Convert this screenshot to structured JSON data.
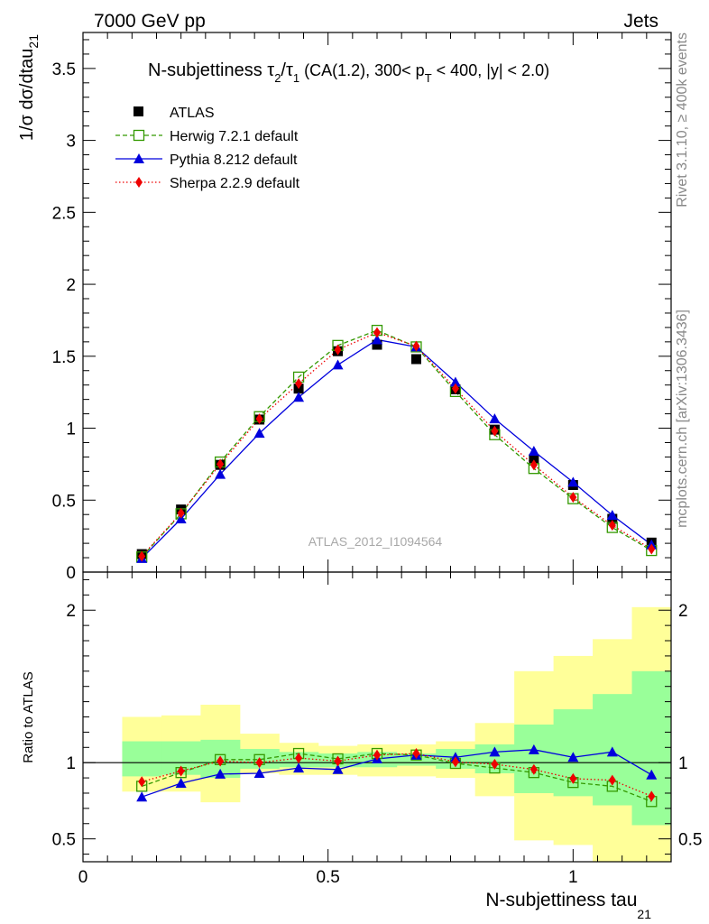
{
  "header": {
    "left": "7000 GeV pp",
    "right": "Jets"
  },
  "side_labels": {
    "rivet": "Rivet 3.1.10, ≥ 400k events",
    "mcplots": "mcplots.cern.ch [arXiv:1306.3436]"
  },
  "watermark": "ATLAS_2012_I1094564",
  "colors": {
    "atlas": "#000000",
    "herwig": "#339900",
    "pythia": "#0000dd",
    "sherpa": "#ee0000",
    "band_inner": "#99ff99",
    "band_outer": "#ffff99"
  },
  "chart_data": [
    {
      "type": "line",
      "title_main": "N-subjettiness τ",
      "title_sub1": "2",
      "title_slash": "/τ",
      "title_sub2": "1",
      "title_rest1": " (CA(1.2), 300< p",
      "title_sub3": "T",
      "title_rest2": " < 400, |y| < 2.0)",
      "ylabel_main": "1/σ dσ/dtau",
      "ylabel_sub": "21",
      "xlim": [
        0,
        1.2
      ],
      "ylim": [
        0,
        3.75
      ],
      "yticks": [
        0,
        0.5,
        1,
        1.5,
        2,
        2.5,
        3,
        3.5
      ],
      "ytick_labels": [
        "0",
        "0.5",
        "1",
        "1.5",
        "2",
        "2.5",
        "3",
        "3.5"
      ],
      "x": [
        0.12,
        0.2,
        0.28,
        0.36,
        0.44,
        0.52,
        0.6,
        0.68,
        0.76,
        0.84,
        0.92,
        1.0,
        1.08,
        1.16
      ],
      "series": [
        {
          "name": "ATLAS",
          "key": "atlas",
          "values": [
            0.125,
            0.435,
            0.745,
            1.06,
            1.275,
            1.535,
            1.58,
            1.48,
            1.27,
            0.99,
            0.785,
            0.605,
            0.37,
            0.205
          ]
        },
        {
          "name": "Herwig 7.2.1 default",
          "key": "herwig",
          "values": [
            0.105,
            0.405,
            0.765,
            1.08,
            1.355,
            1.575,
            1.68,
            1.565,
            1.255,
            0.955,
            0.72,
            0.51,
            0.31,
            0.15
          ]
        },
        {
          "name": "Pythia 8.212 default",
          "key": "pythia",
          "values": [
            0.095,
            0.37,
            0.68,
            0.965,
            1.215,
            1.44,
            1.615,
            1.565,
            1.32,
            1.065,
            0.84,
            0.625,
            0.395,
            0.19
          ]
        },
        {
          "name": "Sherpa 2.2.9 default",
          "key": "sherpa",
          "values": [
            0.11,
            0.41,
            0.75,
            1.065,
            1.31,
            1.545,
            1.665,
            1.57,
            1.275,
            0.98,
            0.745,
            0.52,
            0.325,
            0.16
          ]
        }
      ]
    },
    {
      "type": "line",
      "ylabel": "Ratio to ATLAS",
      "xlabel_main": "N-subjettiness tau",
      "xlabel_sub": "21",
      "xlim": [
        0,
        1.2
      ],
      "ylim": [
        0.35,
        2.25
      ],
      "yticks": [
        0.5,
        1,
        2
      ],
      "ytick_labels": [
        "0.5",
        "1",
        "2"
      ],
      "xticks": [
        0,
        0.5,
        1
      ],
      "xtick_labels": [
        "0",
        "0.5",
        "1"
      ],
      "x": [
        0.12,
        0.2,
        0.28,
        0.36,
        0.44,
        0.52,
        0.6,
        0.68,
        0.76,
        0.84,
        0.92,
        1.0,
        1.08,
        1.16
      ],
      "bins": [
        [
          0.08,
          0.16
        ],
        [
          0.16,
          0.24
        ],
        [
          0.24,
          0.32
        ],
        [
          0.32,
          0.4
        ],
        [
          0.4,
          0.48
        ],
        [
          0.48,
          0.56
        ],
        [
          0.56,
          0.64
        ],
        [
          0.64,
          0.72
        ],
        [
          0.72,
          0.8
        ],
        [
          0.8,
          0.88
        ],
        [
          0.88,
          0.96
        ],
        [
          0.96,
          1.04
        ],
        [
          1.04,
          1.12
        ],
        [
          1.12,
          1.2
        ]
      ],
      "band_inner": [
        [
          0.91,
          1.14
        ],
        [
          0.92,
          1.14
        ],
        [
          0.9,
          1.15
        ],
        [
          0.96,
          1.09
        ],
        [
          0.97,
          1.07
        ],
        [
          0.97,
          1.06
        ],
        [
          0.97,
          1.07
        ],
        [
          0.98,
          1.06
        ],
        [
          0.96,
          1.09
        ],
        [
          0.93,
          1.12
        ],
        [
          0.8,
          1.25
        ],
        [
          0.78,
          1.35
        ],
        [
          0.72,
          1.45
        ],
        [
          0.59,
          1.6
        ]
      ],
      "band_outer": [
        [
          0.81,
          1.3
        ],
        [
          0.81,
          1.31
        ],
        [
          0.74,
          1.38
        ],
        [
          0.93,
          1.19
        ],
        [
          0.92,
          1.13
        ],
        [
          0.92,
          1.11
        ],
        [
          0.91,
          1.12
        ],
        [
          0.91,
          1.12
        ],
        [
          0.9,
          1.14
        ],
        [
          0.78,
          1.26
        ],
        [
          0.49,
          1.6
        ],
        [
          0.46,
          1.7
        ],
        [
          0.35,
          1.81
        ],
        [
          0.35,
          2.02
        ]
      ],
      "series": [
        {
          "name": "Herwig 7.2.1 default",
          "key": "herwig",
          "values": [
            0.845,
            0.935,
            1.02,
            1.02,
            1.06,
            1.025,
            1.06,
            1.05,
            0.995,
            0.965,
            0.935,
            0.87,
            0.845,
            0.745
          ]
        },
        {
          "name": "Pythia 8.212 default",
          "key": "pythia",
          "values": [
            0.775,
            0.865,
            0.925,
            0.93,
            0.965,
            0.955,
            1.025,
            1.05,
            1.035,
            1.07,
            1.085,
            1.035,
            1.07,
            0.92
          ]
        },
        {
          "name": "Sherpa 2.2.9 default",
          "key": "sherpa",
          "values": [
            0.875,
            0.945,
            1.01,
            1.0,
            1.03,
            1.01,
            1.05,
            1.06,
            1.005,
            0.99,
            0.955,
            0.895,
            0.885,
            0.78
          ]
        }
      ]
    }
  ]
}
